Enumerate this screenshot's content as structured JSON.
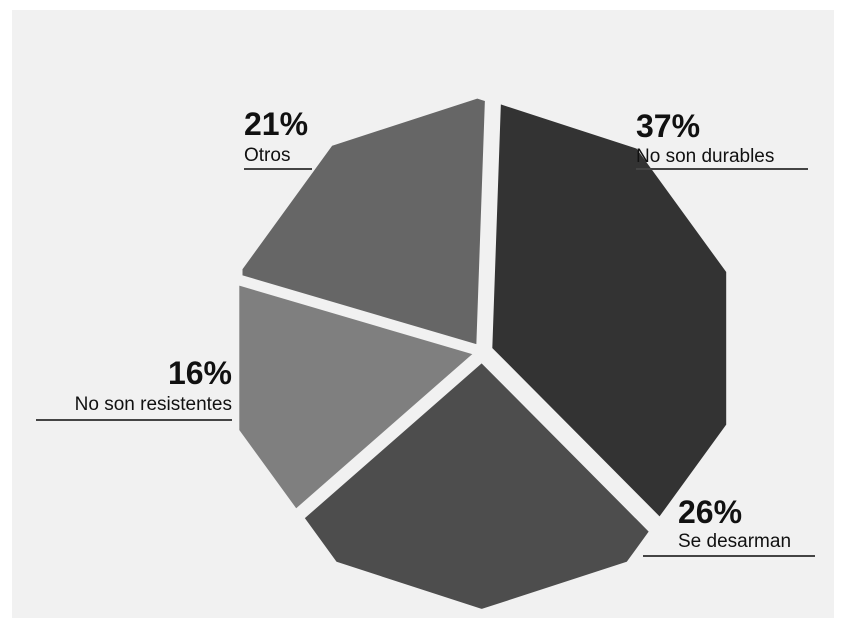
{
  "chart_data": {
    "type": "pie",
    "categories": [
      "No son durables",
      "Se desarman",
      "No son resistentes",
      "Otros"
    ],
    "values": [
      37,
      26,
      16,
      21
    ],
    "value_labels": [
      "37%",
      "26%",
      "16%",
      "21%"
    ],
    "colors": [
      "#333333",
      "#4d4d4d",
      "#7f7f7f",
      "#666666"
    ],
    "title": "",
    "legend": "none"
  }
}
